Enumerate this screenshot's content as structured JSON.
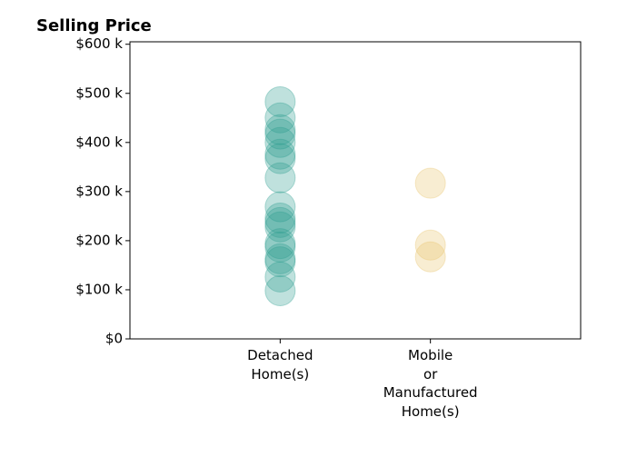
{
  "chart_data": {
    "type": "strip",
    "title": "Selling Price",
    "categories": [
      "Detached\nHome(s)",
      "Mobile\nor\nManufactured\nHome(s)"
    ],
    "colors": [
      "#2a9d8f",
      "#e9c46a"
    ],
    "values": [
      [
        483000,
        450000,
        426000,
        417000,
        400000,
        376000,
        367000,
        328000,
        269000,
        246000,
        237000,
        228000,
        194000,
        187000,
        163000,
        157000,
        126000,
        98000
      ],
      [
        317000,
        191000,
        167000
      ]
    ],
    "ylim": [
      0,
      605000
    ],
    "yticks": [
      {
        "value": 0,
        "label": "$0"
      },
      {
        "value": 100000,
        "label": "$100 k"
      },
      {
        "value": 200000,
        "label": "$200 k"
      },
      {
        "value": 300000,
        "label": "$300 k"
      },
      {
        "value": 400000,
        "label": "$400 k"
      },
      {
        "value": 500000,
        "label": "$500 k"
      },
      {
        "value": 600000,
        "label": "$600 k"
      }
    ]
  }
}
